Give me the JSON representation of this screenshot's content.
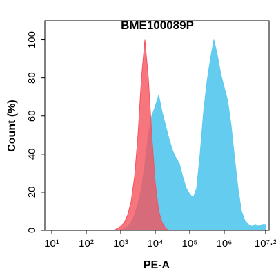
{
  "chart_data": {
    "type": "area",
    "title": "BME100089P",
    "x_label": "PE-A",
    "y_label": "Count (%)",
    "x_scale": "log",
    "x": [
      631,
      794,
      1000,
      1259,
      1585,
      1995,
      2512,
      3162,
      3981,
      5012,
      6310,
      7943,
      10000,
      12589,
      15849,
      19953,
      25119,
      31623,
      39811,
      50119,
      63096,
      79433,
      100000,
      125893,
      158489,
      199526,
      251189,
      316228,
      398107,
      501187,
      630957,
      794328,
      1000000,
      1258925,
      1584893,
      1995262,
      2511886,
      3162278,
      3981072,
      5011872,
      6309573,
      7943282,
      10000000,
      12589254,
      15848932
    ],
    "series": [
      {
        "color": "#5ccaee",
        "values": [
          0,
          0,
          0,
          1,
          2,
          4,
          8,
          14,
          22,
          35,
          50,
          60,
          65,
          71,
          62,
          55,
          48,
          42,
          38,
          35,
          28,
          22,
          19,
          17,
          22,
          40,
          62,
          78,
          90,
          100,
          92,
          82,
          75,
          68,
          55,
          38,
          22,
          10,
          5,
          3,
          2,
          3,
          2,
          3,
          3
        ]
      },
      {
        "color": "#f5525c",
        "values": [
          0,
          1,
          2,
          4,
          8,
          15,
          28,
          50,
          80,
          100,
          80,
          50,
          25,
          10,
          4,
          1,
          0,
          0,
          0,
          0,
          0,
          0,
          0,
          0,
          0,
          0,
          0,
          0,
          0,
          0,
          0,
          0,
          0,
          0,
          0,
          0,
          0,
          0,
          0,
          0,
          0,
          0,
          0,
          0,
          0
        ]
      }
    ],
    "xlim": [
      6.3,
      20000000
    ],
    "xticks": [
      {
        "value": 10,
        "label": "10¹"
      },
      {
        "value": 100,
        "label": "10²"
      },
      {
        "value": 1000,
        "label": "10³"
      },
      {
        "value": 10000,
        "label": "10⁴"
      },
      {
        "value": 100000,
        "label": "10⁵"
      },
      {
        "value": 1000000,
        "label": "10⁶"
      },
      {
        "value": 15848932,
        "label": "10⁷·²"
      }
    ],
    "ylim": [
      0,
      110
    ],
    "yticks": [
      0,
      20,
      40,
      60,
      80,
      100
    ]
  }
}
